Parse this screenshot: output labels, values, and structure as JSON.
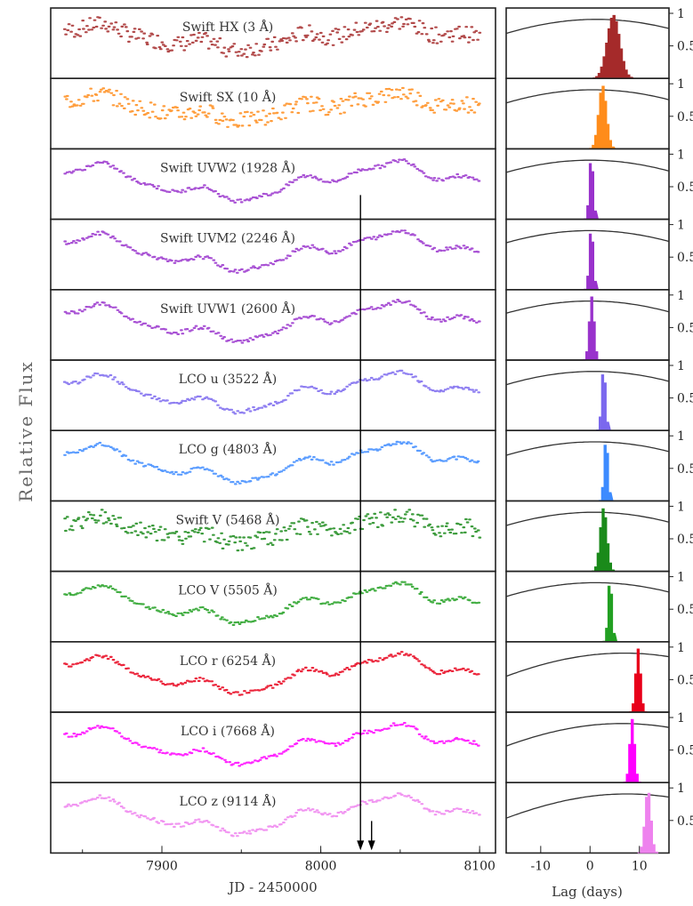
{
  "figure": {
    "ylabel": "Relative Flux",
    "xlabel_left": "JD - 2450000",
    "xlabel_right": "Lag (days)"
  },
  "chart_data": {
    "type": "line",
    "title": "",
    "xlabel": "JD - 2450000",
    "ylabel": "Relative Flux",
    "xlim": [
      7830,
      8110
    ],
    "xticks": [
      7900,
      8000,
      8100
    ],
    "marked_dates": [
      8025,
      8032
    ],
    "lag_panel": {
      "type": "histogram",
      "xlabel": "Lag (days)",
      "xlim": [
        -17,
        16
      ],
      "xticks": [
        -10,
        0,
        10
      ],
      "yticks": [
        0.5,
        1
      ],
      "ylim": [
        0,
        1
      ]
    },
    "series": [
      {
        "name": "Swift HX (3 Å)",
        "color": "#a52a2a",
        "noise": "high",
        "lag_peak": 4.5,
        "lag_width": 1.3
      },
      {
        "name": "Swift SX (10 Å)",
        "color": "#ff8c1a",
        "noise": "high",
        "lag_peak": 2.3,
        "lag_width": 0.8
      },
      {
        "name": "Swift UVW2 (1928 Å)",
        "color": "#9932cc",
        "noise": "low",
        "lag_peak": 0.0,
        "lag_width": 0.4
      },
      {
        "name": "Swift UVM2 (2246 Å)",
        "color": "#9932cc",
        "noise": "low",
        "lag_peak": 0.0,
        "lag_width": 0.4
      },
      {
        "name": "Swift UVW1 (2600 Å)",
        "color": "#9932cc",
        "noise": "low",
        "lag_peak": 0.1,
        "lag_width": 0.5
      },
      {
        "name": "LCO u (3522 Å)",
        "color": "#7b68ee",
        "noise": "low",
        "lag_peak": 2.5,
        "lag_width": 0.4
      },
      {
        "name": "LCO g (4803 Å)",
        "color": "#3d8bff",
        "noise": "low",
        "lag_peak": 3.0,
        "lag_width": 0.4
      },
      {
        "name": "Swift V (5468 Å)",
        "color": "#1a8a1a",
        "noise": "high",
        "lag_peak": 2.5,
        "lag_width": 0.7
      },
      {
        "name": "LCO V (5505 Å)",
        "color": "#22a022",
        "noise": "low",
        "lag_peak": 3.8,
        "lag_width": 0.4
      },
      {
        "name": "LCO r (6254 Å)",
        "color": "#e8001a",
        "noise": "low",
        "lag_peak": 9.5,
        "lag_width": 0.5
      },
      {
        "name": "LCO i (7668 Å)",
        "color": "#ff00ff",
        "noise": "low",
        "lag_peak": 8.3,
        "lag_width": 0.5
      },
      {
        "name": "LCO z (9114 Å)",
        "color": "#ee82ee",
        "noise": "low",
        "lag_peak": 11.5,
        "lag_width": 0.6
      }
    ]
  }
}
